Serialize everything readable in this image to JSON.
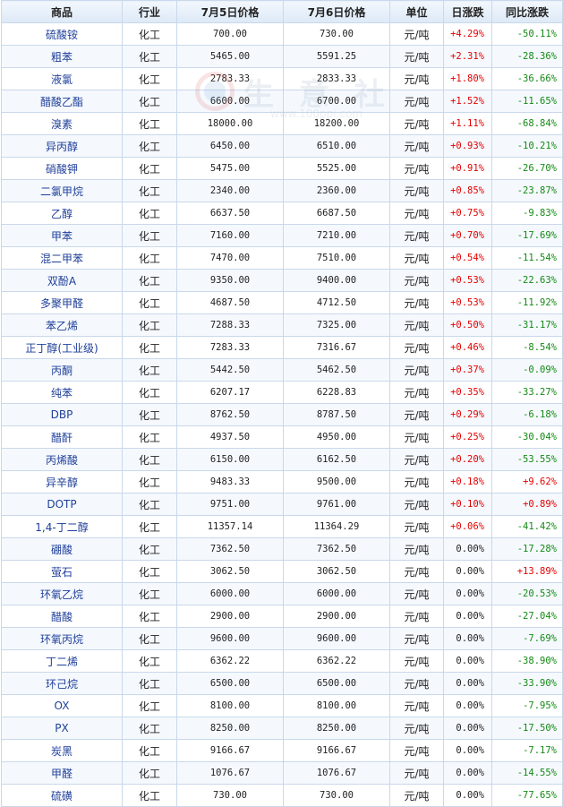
{
  "table": {
    "headers": [
      "商品",
      "行业",
      "7月5日价格",
      "7月6日价格",
      "单位",
      "日涨跌",
      "同比涨跌"
    ],
    "rows": [
      {
        "name": "硫酸铵",
        "industry": "化工",
        "p5": "700.00",
        "p6": "730.00",
        "unit": "元/吨",
        "day": "+4.29%",
        "yoy": "-50.11%",
        "day_dir": "up",
        "yoy_dir": "down"
      },
      {
        "name": "粗苯",
        "industry": "化工",
        "p5": "5465.00",
        "p6": "5591.25",
        "unit": "元/吨",
        "day": "+2.31%",
        "yoy": "-28.36%",
        "day_dir": "up",
        "yoy_dir": "down"
      },
      {
        "name": "液氯",
        "industry": "化工",
        "p5": "2783.33",
        "p6": "2833.33",
        "unit": "元/吨",
        "day": "+1.80%",
        "yoy": "-36.66%",
        "day_dir": "up",
        "yoy_dir": "down"
      },
      {
        "name": "醋酸乙酯",
        "industry": "化工",
        "p5": "6600.00",
        "p6": "6700.00",
        "unit": "元/吨",
        "day": "+1.52%",
        "yoy": "-11.65%",
        "day_dir": "up",
        "yoy_dir": "down"
      },
      {
        "name": "溴素",
        "industry": "化工",
        "p5": "18000.00",
        "p6": "18200.00",
        "unit": "元/吨",
        "day": "+1.11%",
        "yoy": "-68.84%",
        "day_dir": "up",
        "yoy_dir": "down"
      },
      {
        "name": "异丙醇",
        "industry": "化工",
        "p5": "6450.00",
        "p6": "6510.00",
        "unit": "元/吨",
        "day": "+0.93%",
        "yoy": "-10.21%",
        "day_dir": "up",
        "yoy_dir": "down"
      },
      {
        "name": "硝酸钾",
        "industry": "化工",
        "p5": "5475.00",
        "p6": "5525.00",
        "unit": "元/吨",
        "day": "+0.91%",
        "yoy": "-26.70%",
        "day_dir": "up",
        "yoy_dir": "down"
      },
      {
        "name": "二氯甲烷",
        "industry": "化工",
        "p5": "2340.00",
        "p6": "2360.00",
        "unit": "元/吨",
        "day": "+0.85%",
        "yoy": "-23.87%",
        "day_dir": "up",
        "yoy_dir": "down"
      },
      {
        "name": "乙醇",
        "industry": "化工",
        "p5": "6637.50",
        "p6": "6687.50",
        "unit": "元/吨",
        "day": "+0.75%",
        "yoy": "-9.83%",
        "day_dir": "up",
        "yoy_dir": "down"
      },
      {
        "name": "甲苯",
        "industry": "化工",
        "p5": "7160.00",
        "p6": "7210.00",
        "unit": "元/吨",
        "day": "+0.70%",
        "yoy": "-17.69%",
        "day_dir": "up",
        "yoy_dir": "down"
      },
      {
        "name": "混二甲苯",
        "industry": "化工",
        "p5": "7470.00",
        "p6": "7510.00",
        "unit": "元/吨",
        "day": "+0.54%",
        "yoy": "-11.54%",
        "day_dir": "up",
        "yoy_dir": "down"
      },
      {
        "name": "双酚A",
        "industry": "化工",
        "p5": "9350.00",
        "p6": "9400.00",
        "unit": "元/吨",
        "day": "+0.53%",
        "yoy": "-22.63%",
        "day_dir": "up",
        "yoy_dir": "down"
      },
      {
        "name": "多聚甲醛",
        "industry": "化工",
        "p5": "4687.50",
        "p6": "4712.50",
        "unit": "元/吨",
        "day": "+0.53%",
        "yoy": "-11.92%",
        "day_dir": "up",
        "yoy_dir": "down"
      },
      {
        "name": "苯乙烯",
        "industry": "化工",
        "p5": "7288.33",
        "p6": "7325.00",
        "unit": "元/吨",
        "day": "+0.50%",
        "yoy": "-31.17%",
        "day_dir": "up",
        "yoy_dir": "down"
      },
      {
        "name": "正丁醇(工业级)",
        "industry": "化工",
        "p5": "7283.33",
        "p6": "7316.67",
        "unit": "元/吨",
        "day": "+0.46%",
        "yoy": "-8.54%",
        "day_dir": "up",
        "yoy_dir": "down"
      },
      {
        "name": "丙酮",
        "industry": "化工",
        "p5": "5442.50",
        "p6": "5462.50",
        "unit": "元/吨",
        "day": "+0.37%",
        "yoy": "-0.09%",
        "day_dir": "up",
        "yoy_dir": "down"
      },
      {
        "name": "纯苯",
        "industry": "化工",
        "p5": "6207.17",
        "p6": "6228.83",
        "unit": "元/吨",
        "day": "+0.35%",
        "yoy": "-33.27%",
        "day_dir": "up",
        "yoy_dir": "down"
      },
      {
        "name": "DBP",
        "industry": "化工",
        "p5": "8762.50",
        "p6": "8787.50",
        "unit": "元/吨",
        "day": "+0.29%",
        "yoy": "-6.18%",
        "day_dir": "up",
        "yoy_dir": "down"
      },
      {
        "name": "醋酐",
        "industry": "化工",
        "p5": "4937.50",
        "p6": "4950.00",
        "unit": "元/吨",
        "day": "+0.25%",
        "yoy": "-30.04%",
        "day_dir": "up",
        "yoy_dir": "down"
      },
      {
        "name": "丙烯酸",
        "industry": "化工",
        "p5": "6150.00",
        "p6": "6162.50",
        "unit": "元/吨",
        "day": "+0.20%",
        "yoy": "-53.55%",
        "day_dir": "up",
        "yoy_dir": "down"
      },
      {
        "name": "异辛醇",
        "industry": "化工",
        "p5": "9483.33",
        "p6": "9500.00",
        "unit": "元/吨",
        "day": "+0.18%",
        "yoy": "+9.62%",
        "day_dir": "up",
        "yoy_dir": "up"
      },
      {
        "name": "DOTP",
        "industry": "化工",
        "p5": "9751.00",
        "p6": "9761.00",
        "unit": "元/吨",
        "day": "+0.10%",
        "yoy": "+0.89%",
        "day_dir": "up",
        "yoy_dir": "up"
      },
      {
        "name": "1,4-丁二醇",
        "industry": "化工",
        "p5": "11357.14",
        "p6": "11364.29",
        "unit": "元/吨",
        "day": "+0.06%",
        "yoy": "-41.42%",
        "day_dir": "up",
        "yoy_dir": "down"
      },
      {
        "name": "硼酸",
        "industry": "化工",
        "p5": "7362.50",
        "p6": "7362.50",
        "unit": "元/吨",
        "day": "0.00%",
        "yoy": "-17.28%",
        "day_dir": "flat",
        "yoy_dir": "down"
      },
      {
        "name": "萤石",
        "industry": "化工",
        "p5": "3062.50",
        "p6": "3062.50",
        "unit": "元/吨",
        "day": "0.00%",
        "yoy": "+13.89%",
        "day_dir": "flat",
        "yoy_dir": "up"
      },
      {
        "name": "环氧乙烷",
        "industry": "化工",
        "p5": "6000.00",
        "p6": "6000.00",
        "unit": "元/吨",
        "day": "0.00%",
        "yoy": "-20.53%",
        "day_dir": "flat",
        "yoy_dir": "down"
      },
      {
        "name": "醋酸",
        "industry": "化工",
        "p5": "2900.00",
        "p6": "2900.00",
        "unit": "元/吨",
        "day": "0.00%",
        "yoy": "-27.04%",
        "day_dir": "flat",
        "yoy_dir": "down"
      },
      {
        "name": "环氧丙烷",
        "industry": "化工",
        "p5": "9600.00",
        "p6": "9600.00",
        "unit": "元/吨",
        "day": "0.00%",
        "yoy": "-7.69%",
        "day_dir": "flat",
        "yoy_dir": "down"
      },
      {
        "name": "丁二烯",
        "industry": "化工",
        "p5": "6362.22",
        "p6": "6362.22",
        "unit": "元/吨",
        "day": "0.00%",
        "yoy": "-38.90%",
        "day_dir": "flat",
        "yoy_dir": "down"
      },
      {
        "name": "环己烷",
        "industry": "化工",
        "p5": "6500.00",
        "p6": "6500.00",
        "unit": "元/吨",
        "day": "0.00%",
        "yoy": "-33.90%",
        "day_dir": "flat",
        "yoy_dir": "down"
      },
      {
        "name": "OX",
        "industry": "化工",
        "p5": "8100.00",
        "p6": "8100.00",
        "unit": "元/吨",
        "day": "0.00%",
        "yoy": "-7.95%",
        "day_dir": "flat",
        "yoy_dir": "down"
      },
      {
        "name": "PX",
        "industry": "化工",
        "p5": "8250.00",
        "p6": "8250.00",
        "unit": "元/吨",
        "day": "0.00%",
        "yoy": "-17.50%",
        "day_dir": "flat",
        "yoy_dir": "down"
      },
      {
        "name": "炭黑",
        "industry": "化工",
        "p5": "9166.67",
        "p6": "9166.67",
        "unit": "元/吨",
        "day": "0.00%",
        "yoy": "-7.17%",
        "day_dir": "flat",
        "yoy_dir": "down"
      },
      {
        "name": "甲醛",
        "industry": "化工",
        "p5": "1076.67",
        "p6": "1076.67",
        "unit": "元/吨",
        "day": "0.00%",
        "yoy": "-14.55%",
        "day_dir": "flat",
        "yoy_dir": "down"
      },
      {
        "name": "硫磺",
        "industry": "化工",
        "p5": "730.00",
        "p6": "730.00",
        "unit": "元/吨",
        "day": "0.00%",
        "yoy": "-77.65%",
        "day_dir": "flat",
        "yoy_dir": "down"
      }
    ]
  },
  "watermark": {
    "text": "生 意 社",
    "url": "www.100ppi.com"
  },
  "colors": {
    "up": "#e40000",
    "down": "#138a13",
    "header_bg": "#dde9f7",
    "border": "#c9d8ea",
    "name_text": "#1f3f99"
  }
}
